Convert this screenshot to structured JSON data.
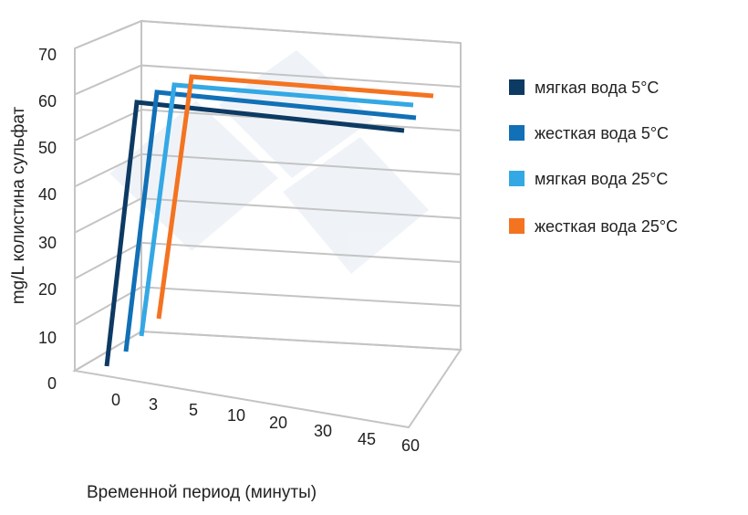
{
  "chart_data": {
    "type": "line",
    "projection": "3d",
    "title": "",
    "xlabel": "Временной период (минуты)",
    "ylabel": "mg/L колистина сульфат",
    "categories": [
      "0",
      "3",
      "5",
      "10",
      "20",
      "30",
      "45",
      "60"
    ],
    "ylim": [
      0,
      70
    ],
    "yticks": [
      0,
      10,
      20,
      30,
      40,
      50,
      60,
      70
    ],
    "grid": true,
    "legend_position": "right",
    "series": [
      {
        "name": "мягкая вода 5°C",
        "color": "#0d3a63",
        "values": [
          0,
          60,
          60,
          60,
          60,
          60,
          60,
          60
        ]
      },
      {
        "name": "жесткая вода 5°C",
        "color": "#1170b6",
        "values": [
          0,
          60,
          60,
          60,
          60,
          60,
          60,
          60
        ]
      },
      {
        "name": "мягкая вода 25°C",
        "color": "#34a8e4",
        "values": [
          0,
          60,
          60,
          60,
          60,
          60,
          60,
          60
        ]
      },
      {
        "name": "жесткая вода 25°C",
        "color": "#f47321",
        "values": [
          0,
          60,
          60,
          60,
          60,
          60,
          60,
          60
        ]
      }
    ]
  }
}
